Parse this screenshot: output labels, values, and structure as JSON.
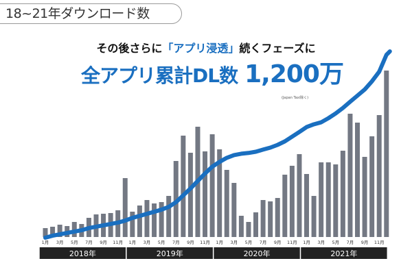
{
  "header": {
    "title": "18~21年ダウンロード数"
  },
  "headline": {
    "line1_pre": "その後さらに",
    "line1_highlight": "「アプリ浸透」",
    "line1_post": "続くフェーズに",
    "line2_label": "全アプリ累計DL数",
    "line2_value": "1,200万",
    "note": "(Japan Taxi除く)"
  },
  "colors": {
    "bar": "#737883",
    "line": "#1a6fc0",
    "year_band": "#222222",
    "highlight": "#1a6fc0"
  },
  "chart_data": {
    "type": "bar+line",
    "title": "",
    "xlabel": "",
    "ylabel": "",
    "grid": false,
    "legend": "none",
    "years": [
      "2018年",
      "2019年",
      "2020年",
      "2021年"
    ],
    "month_tick_labels": [
      "1月",
      "3月",
      "5月",
      "7月",
      "9月",
      "11月"
    ],
    "categories_note": "monthly, Jan 2018 – Dec 2021",
    "series": [
      {
        "type": "bar",
        "values_relative": [
          13,
          15,
          18,
          16,
          22,
          19,
          28,
          33,
          34,
          35,
          39,
          86,
          37,
          46,
          54,
          49,
          51,
          60,
          111,
          148,
          123,
          161,
          125,
          150,
          128,
          98,
          79,
          31,
          22,
          36,
          54,
          52,
          57,
          91,
          104,
          121,
          92,
          60,
          109,
          109,
          106,
          126,
          180,
          167,
          117,
          147,
          178,
          243
        ]
      },
      {
        "type": "line",
        "cumulative": true,
        "values": [
          0,
          13,
          22,
          31,
          40,
          49,
          63,
          72,
          81,
          90,
          99,
          112,
          130,
          143,
          157,
          170,
          184,
          202,
          233,
          278,
          323,
          372,
          421,
          466,
          497,
          524,
          542,
          551,
          556,
          564,
          578,
          591,
          609,
          632,
          663,
          694,
          726,
          744,
          757,
          784,
          815,
          851,
          892,
          932,
          972,
          1026,
          1089,
          1200
        ]
      }
    ]
  }
}
